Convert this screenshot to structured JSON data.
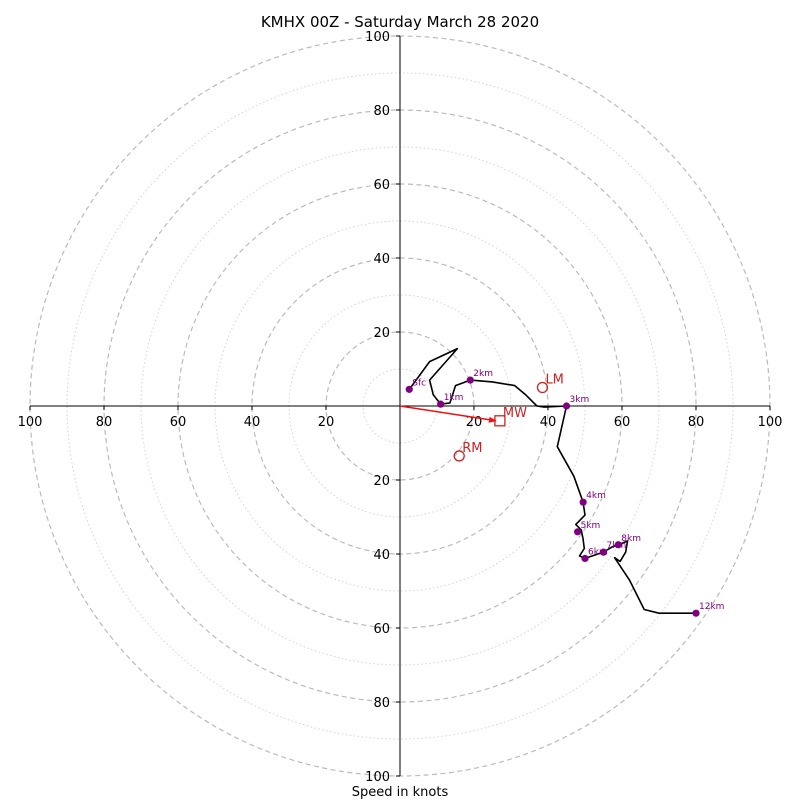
{
  "chart_data": {
    "type": "hodograph",
    "title": "KMHX 00Z - Saturday March 28 2020",
    "xlabel": "Speed in knots",
    "range": [
      -100,
      100
    ],
    "rings_major": [
      20,
      40,
      60,
      80,
      100
    ],
    "rings_minor": [
      10,
      30,
      50,
      70,
      90
    ],
    "ticks": {
      "left": [
        "100",
        "80",
        "60",
        "40",
        "20"
      ],
      "right": [
        "20",
        "40",
        "60",
        "80",
        "100"
      ],
      "up": [
        "20",
        "40",
        "60",
        "80",
        "100"
      ],
      "down": [
        "20",
        "40",
        "60",
        "80",
        "100"
      ]
    },
    "grid": true,
    "colors": {
      "trace": "#000000",
      "height_markers": "#800080",
      "storm_motion": "#cc2222",
      "mean_wind_vector": "#ee1111",
      "grid": "#bbbbbb"
    },
    "trace": [
      [
        2.5,
        4.5
      ],
      [
        8,
        12
      ],
      [
        15.5,
        15.5
      ],
      [
        8,
        7
      ],
      [
        9,
        3
      ],
      [
        11,
        0.5
      ],
      [
        13.5,
        0.8
      ],
      [
        15,
        5.5
      ],
      [
        19,
        7
      ],
      [
        25,
        6.5
      ],
      [
        31,
        5.5
      ],
      [
        34,
        3
      ],
      [
        37,
        0
      ],
      [
        39,
        -0.3
      ],
      [
        45,
        0
      ],
      [
        42.5,
        -11
      ],
      [
        47,
        -19
      ],
      [
        49.5,
        -26
      ],
      [
        50,
        -29.5
      ],
      [
        47.5,
        -32
      ],
      [
        49,
        -33.5
      ],
      [
        49.5,
        -36
      ],
      [
        49.8,
        -38.5
      ],
      [
        48.5,
        -40.5
      ],
      [
        50,
        -41.2
      ],
      [
        52,
        -40.5
      ],
      [
        55,
        -39.5
      ],
      [
        57.5,
        -38
      ],
      [
        59,
        -37.5
      ],
      [
        61.5,
        -36.5
      ],
      [
        61,
        -39.5
      ],
      [
        59.5,
        -42
      ],
      [
        58,
        -41
      ],
      [
        62,
        -47
      ],
      [
        66,
        -55
      ],
      [
        70,
        -56
      ],
      [
        80,
        -56
      ]
    ],
    "height_markers": [
      {
        "label": "Sfc",
        "u": 2.5,
        "v": 4.5
      },
      {
        "label": "1km",
        "u": 11,
        "v": 0.5
      },
      {
        "label": "2km",
        "u": 19,
        "v": 7
      },
      {
        "label": "3km",
        "u": 45,
        "v": 0
      },
      {
        "label": "4km",
        "u": 49.5,
        "v": -26
      },
      {
        "label": "5km",
        "u": 48,
        "v": -34
      },
      {
        "label": "6km",
        "u": 50,
        "v": -41.2
      },
      {
        "label": "7km",
        "u": 55,
        "v": -39.5
      },
      {
        "label": "8km",
        "u": 59,
        "v": -37.5
      },
      {
        "label": "12km",
        "u": 80,
        "v": -56
      }
    ],
    "storm_motions": [
      {
        "label": "LM",
        "u": 38.5,
        "v": 5,
        "marker": "circle"
      },
      {
        "label": "MW",
        "u": 27,
        "v": -4,
        "marker": "square"
      },
      {
        "label": "RM",
        "u": 16,
        "v": -13.5,
        "marker": "circle"
      }
    ],
    "mean_wind_vector": {
      "u": 27,
      "v": -4
    }
  }
}
